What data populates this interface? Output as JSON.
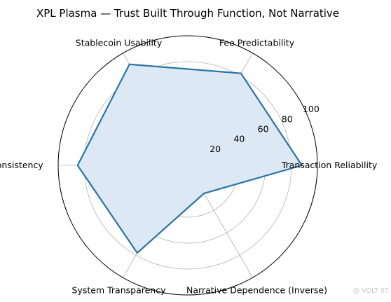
{
  "chart_data": {
    "type": "radar",
    "title": "XPL Plasma — Trust Built Through Function, Not Narrative",
    "axes": [
      "Transaction Reliability",
      "Fee Predictability",
      "Stablecoin Usability",
      "UX Consistency",
      "System Transparency",
      "Narrative Dependence (Inverse)"
    ],
    "values": [
      88,
      82,
      90,
      85,
      78,
      25
    ],
    "radial_ticks": [
      20,
      40,
      60,
      80,
      100
    ],
    "rlim": [
      0,
      100
    ],
    "grid": true,
    "colors": {
      "line": "#2a74a8",
      "fill": "#dce8f3",
      "grid": "#b0b0b0"
    }
  },
  "watermark": "@ VOLT 07"
}
